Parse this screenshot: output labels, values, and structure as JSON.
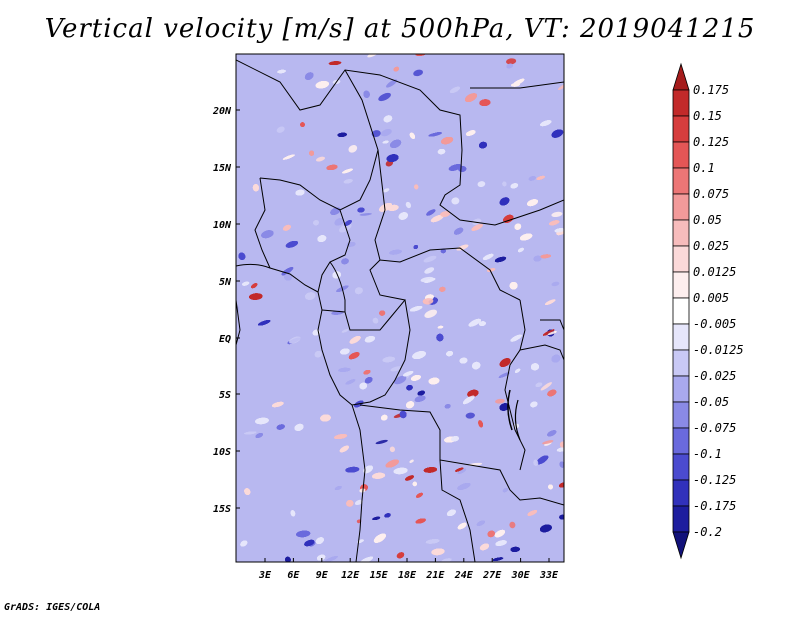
{
  "title": "Vertical velocity [m/s] at 500hPa, VT: 2019041215",
  "credit": "GrADS: IGES/COLA",
  "map": {
    "lat_ticks": [
      "20N",
      "15N",
      "10N",
      "5N",
      "EQ",
      "5S",
      "10S",
      "15S"
    ],
    "lon_ticks": [
      "3E",
      "6E",
      "9E",
      "12E",
      "15E",
      "18E",
      "21E",
      "24E",
      "27E",
      "30E",
      "33E"
    ]
  },
  "colorbar": {
    "levels": [
      "0.175",
      "0.15",
      "0.125",
      "0.1",
      "0.075",
      "0.05",
      "0.025",
      "0.0125",
      "0.005",
      "-0.005",
      "-0.0125",
      "-0.025",
      "-0.05",
      "-0.075",
      "-0.1",
      "-0.125",
      "-0.175",
      "-0.2"
    ],
    "colors": [
      "#a51c1c",
      "#c22a2a",
      "#d63d3d",
      "#e45656",
      "#ec7676",
      "#f29a9a",
      "#f7bcbc",
      "#fbd9d9",
      "#fdeeee",
      "#ffffff",
      "#e6e6fb",
      "#c9c9f5",
      "#a9a9ee",
      "#8a8ae6",
      "#6a6add",
      "#4b4bcf",
      "#3131bb",
      "#1d1d9e",
      "#12127a"
    ]
  }
}
